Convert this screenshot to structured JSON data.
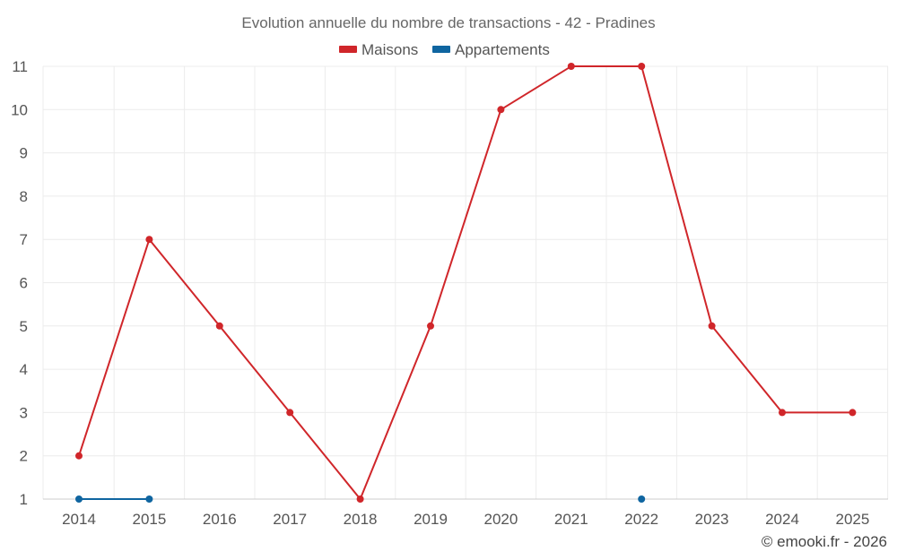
{
  "chart_data": {
    "type": "line",
    "title": "Evolution annuelle du nombre de transactions - 42 - Pradines",
    "xlabel": "",
    "ylabel": "",
    "x": [
      "2014",
      "2015",
      "2016",
      "2017",
      "2018",
      "2019",
      "2020",
      "2021",
      "2022",
      "2023",
      "2024",
      "2025"
    ],
    "ylim": [
      1,
      11
    ],
    "yticks": [
      1,
      2,
      3,
      4,
      5,
      6,
      7,
      8,
      9,
      10,
      11
    ],
    "grid": true,
    "legend": "top-center",
    "series": [
      {
        "name": "Maisons",
        "color": "#d0262a",
        "values": [
          2,
          7,
          5,
          3,
          1,
          5,
          10,
          11,
          11,
          5,
          3,
          3
        ]
      },
      {
        "name": "Appartements",
        "color": "#0f65a0",
        "values": [
          1,
          1,
          null,
          null,
          null,
          null,
          null,
          null,
          1,
          null,
          null,
          null
        ]
      }
    ],
    "credit": "© emooki.fr - 2026"
  }
}
